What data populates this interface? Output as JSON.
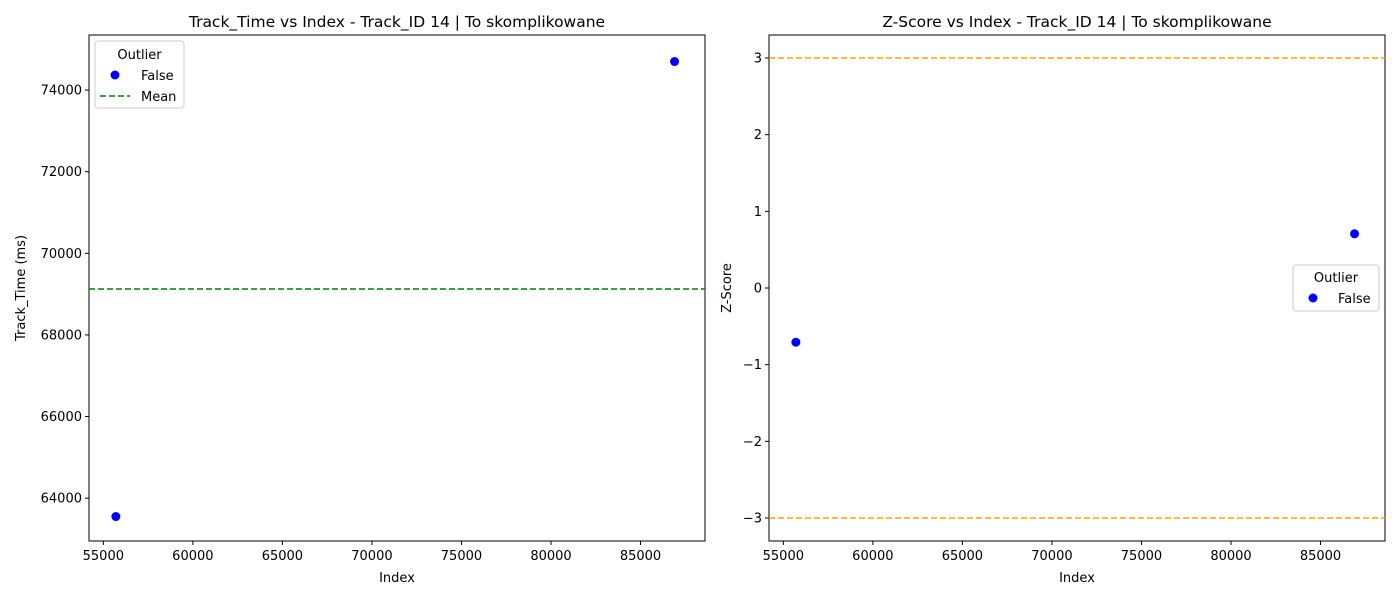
{
  "chart_data": [
    {
      "type": "scatter",
      "title": "Track_Time vs Index - Track_ID 14 | To skomplikowane",
      "xlabel": "Index",
      "ylabel": "Track_Time (ms)",
      "xlim": [
        54200,
        88600
      ],
      "ylim": [
        62950,
        75350
      ],
      "xticks": [
        55000,
        60000,
        65000,
        70000,
        75000,
        80000,
        85000
      ],
      "xtick_labels": [
        "55000",
        "60000",
        "65000",
        "70000",
        "75000",
        "80000",
        "85000"
      ],
      "yticks": [
        64000,
        66000,
        68000,
        70000,
        72000,
        74000
      ],
      "ytick_labels": [
        "64000",
        "66000",
        "68000",
        "70000",
        "72000",
        "74000"
      ],
      "series": [
        {
          "name": "False",
          "color": "#0000ff",
          "points": [
            {
              "x": 55700,
              "y": 63550
            },
            {
              "x": 86900,
              "y": 74700
            }
          ]
        }
      ],
      "hlines": [
        {
          "y": 69125,
          "color": "#008000",
          "style": "dashed",
          "name": "Mean"
        }
      ],
      "legend": {
        "title": "Outlier",
        "placement": "upper left",
        "entries": [
          {
            "label": "False",
            "kind": "marker",
            "color": "#0000ff"
          },
          {
            "label": "Mean",
            "kind": "dashed-line",
            "color": "#008000"
          }
        ]
      },
      "grid": false
    },
    {
      "type": "scatter",
      "title": "Z-Score vs Index - Track_ID 14 | To skomplikowane",
      "xlabel": "Index",
      "ylabel": "Z-Score",
      "xlim": [
        54200,
        88600
      ],
      "ylim": [
        -3.3,
        3.3
      ],
      "xticks": [
        55000,
        60000,
        65000,
        70000,
        75000,
        80000,
        85000
      ],
      "xtick_labels": [
        "55000",
        "60000",
        "65000",
        "70000",
        "75000",
        "80000",
        "85000"
      ],
      "yticks": [
        -3,
        -2,
        -1,
        0,
        1,
        2,
        3
      ],
      "ytick_labels": [
        "−3",
        "−2",
        "−1",
        "0",
        "1",
        "2",
        "3"
      ],
      "series": [
        {
          "name": "False",
          "color": "#0000ff",
          "points": [
            {
              "x": 55700,
              "y": -0.707
            },
            {
              "x": 86900,
              "y": 0.707
            }
          ]
        }
      ],
      "hlines": [
        {
          "y": 3,
          "color": "#ffa500",
          "style": "dashed"
        },
        {
          "y": -3,
          "color": "#ffa500",
          "style": "dashed"
        }
      ],
      "legend": {
        "title": "Outlier",
        "placement": "center right",
        "entries": [
          {
            "label": "False",
            "kind": "marker",
            "color": "#0000ff"
          }
        ]
      },
      "grid": false
    }
  ]
}
